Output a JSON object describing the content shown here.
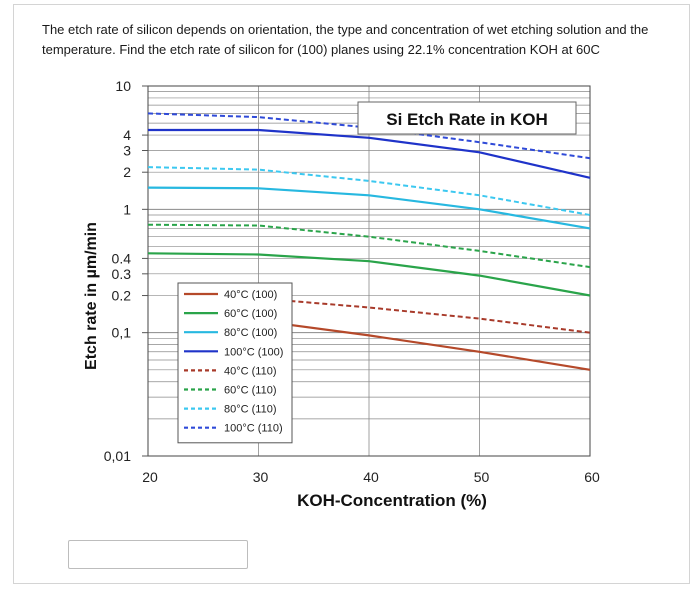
{
  "question": {
    "line1": "The etch rate of silicon depends on orientation, the type and concentration of wet etching solution and the",
    "line2": "temperature. Find the etch rate of silicon for (100) planes using 22.1% concentration KOH at 60C"
  },
  "chart_data": {
    "type": "line",
    "title": "Si Etch Rate in KOH",
    "xlabel": "KOH-Concentration (%)",
    "ylabel": "Etch rate in µm/min",
    "xlim": [
      20,
      60
    ],
    "ylim": [
      0.01,
      10
    ],
    "yscale": "log",
    "grid": true,
    "legend_position": "lower-left",
    "x_ticks": [
      "20",
      "30",
      "40",
      "50",
      "60"
    ],
    "y_ticks": [
      {
        "value": 10,
        "label": "10"
      },
      {
        "value": 4,
        "label": "4"
      },
      {
        "value": 3,
        "label": "3"
      },
      {
        "value": 2,
        "label": "2"
      },
      {
        "value": 1,
        "label": "1"
      },
      {
        "value": 0.4,
        "label": "0.4"
      },
      {
        "value": 0.3,
        "label": "0.3"
      },
      {
        "value": 0.2,
        "label": "0.2"
      },
      {
        "value": 0.1,
        "label": "0,1"
      },
      {
        "value": 0.01,
        "label": "0,01"
      }
    ],
    "series": [
      {
        "name": "40°C (100)",
        "color": "#b5492a",
        "dash": false,
        "x": [
          30,
          40,
          50,
          60
        ],
        "y": [
          0.125,
          0.095,
          0.07,
          0.05
        ]
      },
      {
        "name": "60°C (100)",
        "color": "#2aa44a",
        "dash": false,
        "x": [
          20,
          30,
          40,
          50,
          60
        ],
        "y": [
          0.44,
          0.43,
          0.38,
          0.29,
          0.2
        ]
      },
      {
        "name": "80°C (100)",
        "color": "#27b8e0",
        "dash": false,
        "x": [
          20,
          30,
          40,
          50,
          60
        ],
        "y": [
          1.5,
          1.48,
          1.3,
          1.0,
          0.7
        ]
      },
      {
        "name": "100°C (100)",
        "color": "#1f33c9",
        "dash": false,
        "x": [
          20,
          30,
          40,
          50,
          60
        ],
        "y": [
          4.4,
          4.4,
          3.8,
          2.9,
          1.8
        ]
      },
      {
        "name": "40°C (110)",
        "color": "#a83a2a",
        "dash": true,
        "x": [
          30,
          40,
          50,
          60
        ],
        "y": [
          0.19,
          0.16,
          0.13,
          0.1
        ]
      },
      {
        "name": "60°C (110)",
        "color": "#2aa44a",
        "dash": true,
        "x": [
          20,
          30,
          40,
          50,
          60
        ],
        "y": [
          0.75,
          0.74,
          0.6,
          0.46,
          0.34
        ]
      },
      {
        "name": "80°C (110)",
        "color": "#3cc8f0",
        "dash": true,
        "x": [
          20,
          30,
          40,
          50,
          60
        ],
        "y": [
          2.2,
          2.1,
          1.7,
          1.3,
          0.9
        ]
      },
      {
        "name": "100°C (110)",
        "color": "#2f4ad8",
        "dash": true,
        "x": [
          20,
          30,
          40,
          50,
          60
        ],
        "y": [
          6.0,
          5.6,
          4.6,
          3.5,
          2.6
        ]
      }
    ]
  },
  "answer_input": {
    "value": ""
  }
}
